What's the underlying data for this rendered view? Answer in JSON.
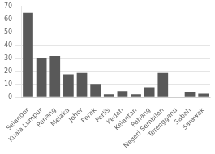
{
  "chart_data": {
    "type": "bar",
    "categories": [
      "Selangor",
      "Kuala Lumpur",
      "Penang",
      "Melaka",
      "Johor",
      "Perak",
      "Perlis",
      "Kedah",
      "Kelantan",
      "Pahang",
      "Negeri Sembilan",
      "Terengganu",
      "Sabah",
      "Sarawak"
    ],
    "values": [
      65,
      30,
      32,
      18,
      19,
      10,
      2.5,
      5,
      2.5,
      8,
      19,
      0,
      4,
      3
    ],
    "color": "#595959",
    "ylim": [
      0,
      70
    ],
    "yticks": [
      0,
      10,
      20,
      30,
      40,
      50,
      60,
      70
    ],
    "grid": true
  }
}
